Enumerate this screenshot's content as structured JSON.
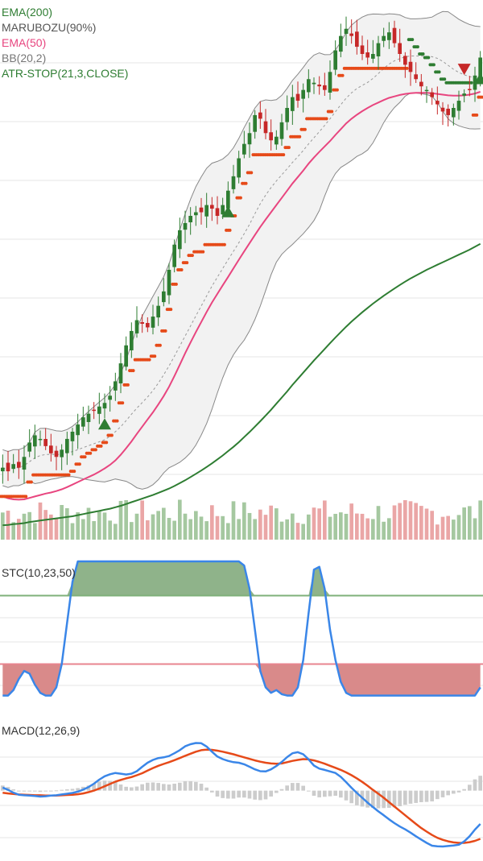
{
  "legend": {
    "ema200": "EMA(200)",
    "marubozu": "MARUBOZU(90%)",
    "ema50": "EMA(50)",
    "bb": "BB(20,2)",
    "atr_stop": "ATR-STOP(21,3,CLOSE)"
  },
  "stc_title": "STC(10,23,50)",
  "macd_title": "MACD(12,26,9)",
  "colors": {
    "up": "#2e7d32",
    "down": "#c62828",
    "ema200": "#2e7d32",
    "ema50": "#e8457f",
    "bb": "#888888",
    "bb_fill": "#f2f2f2",
    "atr_stop": "#e64a19",
    "stc": "#3a86e8",
    "macd": "#3a86e8",
    "signal": "#e64a19",
    "grid": "#e6e6e6",
    "vol_up": "#a5c8a0",
    "vol_down": "#eaa6a6"
  },
  "chart_data": {
    "type": "candlestick",
    "n_bars": 90,
    "price_panel": {
      "close": [
        40,
        39,
        41,
        40,
        43,
        47,
        49,
        48,
        46,
        44,
        43,
        45,
        48,
        50,
        52,
        54,
        55,
        56,
        57,
        58,
        60,
        64,
        69,
        74,
        78,
        81,
        80,
        79,
        82,
        85,
        89,
        95,
        102,
        106,
        108,
        110,
        111,
        111,
        113,
        112,
        110,
        113,
        117,
        121,
        126,
        130,
        133,
        138,
        137,
        133,
        131,
        132,
        136,
        140,
        143,
        142,
        145,
        148,
        147,
        146,
        145,
        150,
        156,
        160,
        162,
        160,
        157,
        155,
        154,
        155,
        158,
        160,
        161,
        158,
        155,
        152,
        150,
        148,
        146,
        145,
        143,
        141,
        139,
        138,
        140,
        142,
        144,
        145,
        149,
        154
      ],
      "ema200": [
        24,
        24.1,
        24.3,
        24.4,
        24.6,
        24.9,
        25.1,
        25.3,
        25.5,
        25.7,
        25.9,
        26.1,
        26.3,
        26.5,
        26.8,
        27.1,
        27.4,
        27.7,
        28,
        28.3,
        28.6,
        29,
        29.4,
        29.9,
        30.4,
        30.9,
        31.4,
        31.9,
        32.4,
        33,
        33.6,
        34.2,
        34.9,
        35.7,
        36.5,
        37.4,
        38.3,
        39.2,
        40.2,
        41.2,
        42.3,
        43.4,
        44.6,
        45.8,
        47.1,
        48.5,
        49.9,
        51.4,
        52.9,
        54.5,
        56.1,
        57.8,
        59.5,
        61.2,
        63,
        64.7,
        66.4,
        68.1,
        69.8,
        71.4,
        73,
        74.6,
        76.2,
        77.7,
        79.2,
        80.6,
        81.9,
        83.2,
        84.4,
        85.6,
        86.7,
        87.8,
        88.8,
        89.8,
        90.8,
        91.7,
        92.6,
        93.4,
        94.2,
        95,
        95.7,
        96.4,
        97.1,
        97.8,
        98.5,
        99.2,
        99.9,
        100.6,
        101.4,
        102.2
      ],
      "ema50": [
        32,
        31.5,
        31.2,
        31.1,
        31.2,
        31.6,
        32,
        32.4,
        32.8,
        33.1,
        33.5,
        34,
        34.6,
        35.3,
        36,
        36.7,
        37.4,
        38.1,
        38.9,
        39.8,
        40.8,
        42,
        43.6,
        45.4,
        47.3,
        49.4,
        51.4,
        53.4,
        55.4,
        57.6,
        59.9,
        62.5,
        65.5,
        68.6,
        71.8,
        74.8,
        77.7,
        80.5,
        83.3,
        85.9,
        88.3,
        90.7,
        93,
        95.4,
        97.8,
        100.1,
        102.4,
        104.7,
        106.9,
        109,
        111,
        113,
        115,
        117,
        119,
        120.8,
        122.6,
        124.5,
        126.2,
        127.8,
        129.3,
        130.8,
        132.5,
        134.1,
        135.7,
        137,
        138.1,
        139.1,
        140,
        140.8,
        141.5,
        142.2,
        142.8,
        143.2,
        143.6,
        143.9,
        144.1,
        144.2,
        144.2,
        144.2,
        144.1,
        143.9,
        143.7,
        143.5,
        143.4,
        143.4,
        143.5,
        143.7,
        144,
        144.5
      ],
      "ylim": [
        20,
        170
      ],
      "markers": [
        {
          "index": 19,
          "shape": "triangle-up",
          "color": "up"
        },
        {
          "index": 42,
          "shape": "triangle-up",
          "color": "up"
        },
        {
          "index": 86,
          "shape": "triangle-down",
          "color": "down"
        },
        {
          "index": 89,
          "shape": "triangle-up",
          "color": "up"
        }
      ]
    },
    "stc_panel": {
      "values": [
        2,
        2,
        6,
        14,
        20,
        18,
        10,
        4,
        2,
        2,
        8,
        25,
        55,
        85,
        100,
        100,
        100,
        100,
        100,
        100,
        100,
        100,
        100,
        100,
        100,
        100,
        100,
        100,
        100,
        100,
        100,
        100,
        100,
        100,
        100,
        100,
        100,
        100,
        100,
        100,
        100,
        100,
        100,
        100,
        100,
        97,
        80,
        50,
        20,
        8,
        4,
        6,
        3,
        2,
        2,
        8,
        28,
        62,
        94,
        96,
        80,
        50,
        28,
        12,
        4,
        2,
        2,
        2,
        2,
        2,
        2,
        2,
        2,
        2,
        2,
        2,
        2,
        2,
        2,
        2,
        2,
        2,
        2,
        2,
        2,
        2,
        2,
        2,
        2,
        8
      ],
      "upper": 75,
      "lower": 25,
      "ylim": [
        0,
        100
      ]
    },
    "macd_panel": {
      "macd": [
        1.2,
        0.3,
        -0.8,
        -1.6,
        -1.8,
        -1.9,
        -2.1,
        -2.3,
        -2.2,
        -1.9,
        -1.8,
        -1.5,
        -1.2,
        -0.9,
        -0.4,
        0.4,
        1.4,
        2.7,
        4.3,
        5.6,
        6.4,
        6.9,
        6.6,
        6.3,
        6.6,
        7.6,
        9.3,
        10.9,
        12.0,
        12.7,
        13.0,
        13.5,
        14.6,
        15.8,
        17.3,
        18.1,
        18.6,
        18.5,
        17.2,
        15.2,
        13.3,
        12.3,
        11.6,
        11.1,
        10.9,
        10.3,
        9.3,
        8.3,
        7.6,
        7.5,
        8.3,
        9.6,
        11.2,
        13.1,
        14.6,
        15.0,
        14.2,
        12.2,
        9.8,
        8.6,
        8.1,
        7.5,
        6.9,
        5.4,
        3.3,
        1.1,
        -0.9,
        -2.8,
        -4.7,
        -6.4,
        -8.1,
        -9.6,
        -11.2,
        -12.7,
        -14.0,
        -15.1,
        -16.4,
        -17.8,
        -19.1,
        -20.4,
        -21.5,
        -21.7,
        -21.8,
        -21.6,
        -21.4,
        -21.1,
        -19.8,
        -17.8,
        -15.2,
        -13.0
      ],
      "signal": [
        -0.8,
        -1.1,
        -1.3,
        -1.5,
        -1.6,
        -1.7,
        -1.8,
        -1.8,
        -1.9,
        -1.9,
        -1.9,
        -1.8,
        -1.7,
        -1.6,
        -1.4,
        -1.1,
        -0.6,
        0.0,
        0.8,
        1.7,
        2.6,
        3.5,
        4.2,
        4.8,
        5.3,
        6.0,
        6.8,
        7.8,
        8.8,
        9.7,
        10.4,
        11.1,
        11.9,
        12.7,
        13.6,
        14.4,
        15.2,
        15.8,
        16.0,
        15.9,
        15.6,
        15.2,
        14.7,
        14.2,
        13.6,
        13.0,
        12.4,
        11.8,
        11.3,
        10.9,
        10.6,
        10.5,
        10.6,
        11.1,
        11.6,
        12.0,
        12.3,
        12.2,
        11.8,
        11.2,
        10.5,
        9.7,
        8.9,
        8.1,
        7.1,
        6.0,
        4.8,
        3.4,
        1.9,
        0.3,
        -1.2,
        -2.8,
        -4.5,
        -6.2,
        -7.9,
        -9.6,
        -11.3,
        -13.0,
        -14.6,
        -16.0,
        -17.3,
        -18.4,
        -19.2,
        -19.8,
        -20.2,
        -20.4,
        -20.4,
        -20.1,
        -19.6,
        -18.8
      ],
      "histogram": [
        2.0,
        1.4,
        0.5,
        -0.1,
        -0.2,
        -0.2,
        -0.3,
        -0.5,
        -0.3,
        0.0,
        0.1,
        0.3,
        0.5,
        0.7,
        1.0,
        1.5,
        2.0,
        2.7,
        3.5,
        3.9,
        3.8,
        3.4,
        2.4,
        1.5,
        1.3,
        1.6,
        2.5,
        3.1,
        3.2,
        3.0,
        2.6,
        2.4,
        2.7,
        3.1,
        3.7,
        3.7,
        3.4,
        2.7,
        1.2,
        -0.7,
        -2.3,
        -2.9,
        -3.1,
        -3.1,
        -2.7,
        -2.7,
        -3.1,
        -3.5,
        -3.7,
        -3.4,
        -2.3,
        -0.9,
        0.6,
        2.0,
        3.0,
        3.0,
        1.9,
        0.0,
        -2.0,
        -2.6,
        -2.4,
        -2.2,
        -2.0,
        -2.7,
        -3.8,
        -4.9,
        -5.7,
        -6.2,
        -6.6,
        -6.7,
        -6.9,
        -6.8,
        -6.7,
        -6.5,
        -6.1,
        -5.5,
        -5.1,
        -4.8,
        -4.5,
        -4.4,
        -4.2,
        -3.3,
        -2.6,
        -1.8,
        -1.2,
        -0.7,
        0.6,
        2.3,
        4.4,
        5.8
      ],
      "ylim": [
        -24,
        20
      ]
    }
  }
}
